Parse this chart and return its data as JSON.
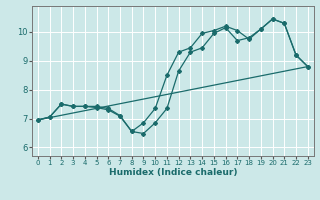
{
  "xlabel": "Humidex (Indice chaleur)",
  "xlim": [
    -0.5,
    23.5
  ],
  "ylim": [
    5.7,
    10.9
  ],
  "xticks": [
    0,
    1,
    2,
    3,
    4,
    5,
    6,
    7,
    8,
    9,
    10,
    11,
    12,
    13,
    14,
    15,
    16,
    17,
    18,
    19,
    20,
    21,
    22,
    23
  ],
  "yticks": [
    6,
    7,
    8,
    9,
    10
  ],
  "bg_color": "#cce8e8",
  "line_color": "#1a6b6b",
  "grid_color": "#ffffff",
  "line1_x": [
    0,
    1,
    2,
    3,
    4,
    5,
    6,
    7,
    8,
    9,
    10,
    11,
    12,
    13,
    14,
    15,
    16,
    17,
    18,
    19,
    20,
    21,
    22,
    23
  ],
  "line1_y": [
    6.95,
    7.05,
    7.5,
    7.42,
    7.42,
    7.38,
    7.3,
    7.08,
    6.55,
    6.85,
    7.35,
    8.5,
    9.3,
    9.45,
    9.95,
    10.05,
    10.2,
    10.05,
    9.75,
    10.1,
    10.45,
    10.3,
    9.2,
    8.8
  ],
  "line2_x": [
    0,
    1,
    2,
    3,
    4,
    5,
    6,
    7,
    8,
    9,
    10,
    11,
    12,
    13,
    14,
    15,
    16,
    17,
    18,
    19,
    20,
    21,
    22,
    23
  ],
  "line2_y": [
    6.95,
    7.05,
    7.5,
    7.42,
    7.42,
    7.42,
    7.35,
    7.1,
    6.55,
    6.48,
    6.85,
    7.35,
    8.65,
    9.3,
    9.45,
    9.95,
    10.15,
    9.7,
    9.8,
    10.1,
    10.45,
    10.3,
    9.2,
    8.8
  ],
  "line3_x": [
    0,
    23
  ],
  "line3_y": [
    6.95,
    8.8
  ]
}
